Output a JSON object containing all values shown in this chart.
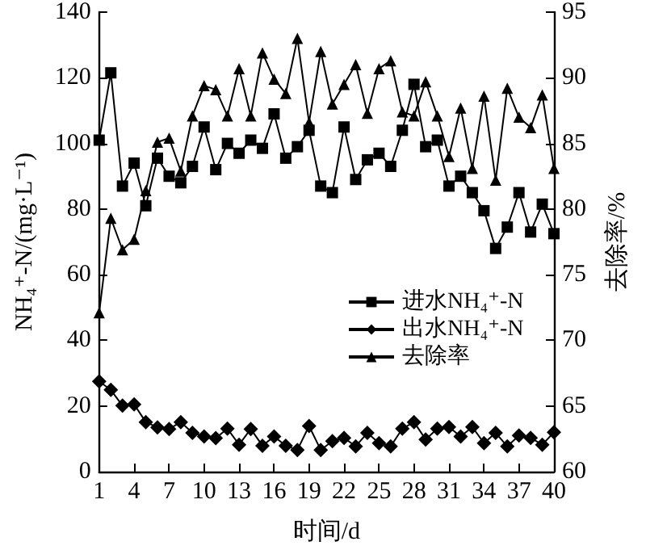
{
  "chart_data": {
    "type": "line",
    "xlabel": "时间/d",
    "ylabel": "NH₄⁺-N/(mg·L⁻¹)",
    "y2label": "去除率/%",
    "x": [
      1,
      2,
      3,
      4,
      5,
      6,
      7,
      8,
      9,
      10,
      11,
      12,
      13,
      14,
      15,
      16,
      17,
      18,
      19,
      20,
      21,
      22,
      23,
      24,
      25,
      26,
      27,
      28,
      29,
      30,
      31,
      32,
      33,
      34,
      35,
      36,
      37,
      38,
      39,
      40
    ],
    "series": [
      {
        "name": "进水NH₄⁺-N",
        "color": "#000000",
        "marker": "square",
        "values": [
          101,
          121.5,
          87,
          94,
          81,
          95.5,
          90,
          88,
          93,
          105,
          92,
          100,
          97,
          101,
          98.5,
          109,
          95.5,
          99,
          104,
          87,
          85,
          105,
          89,
          95,
          97,
          93,
          104,
          118,
          99,
          101,
          87,
          90,
          85,
          79.5,
          68,
          74.5,
          85,
          73,
          81.5,
          72.5
        ]
      },
      {
        "name": "出水NH₄⁺-N",
        "color": "#000000",
        "marker": "diamond",
        "values": [
          27.5,
          24.9,
          20.1,
          20.5,
          15.1,
          13.5,
          13,
          15.1,
          11.8,
          10.7,
          10.2,
          13.1,
          8.2,
          13,
          7.9,
          10.7,
          7.9,
          6.6,
          13.9,
          6.6,
          9.3,
          10.3,
          7.7,
          11.8,
          8.7,
          7.7,
          13.1,
          15.1,
          9.8,
          13.1,
          13.6,
          10.7,
          13.6,
          8.7,
          11.8,
          7.7,
          11,
          10.3,
          8.2,
          12
        ]
      },
      {
        "name": "去除率",
        "color": "#000000",
        "marker": "triangle",
        "axis": "y2",
        "values": [
          72.1,
          79.3,
          76.9,
          77.7,
          81.4,
          85.1,
          85.4,
          82.9,
          87.1,
          89.4,
          89.1,
          87.1,
          90.7,
          87.1,
          91.9,
          89.9,
          88.8,
          93,
          86.6,
          92,
          88,
          89.5,
          91,
          87.3,
          90.7,
          91.3,
          87.4,
          87.1,
          89.7,
          87.1,
          84,
          87.7,
          83.1,
          88.6,
          82.2,
          89.2,
          87,
          86.2,
          88.7,
          83.1
        ]
      }
    ],
    "xlim": [
      1,
      40
    ],
    "xticks": [
      1,
      4,
      7,
      10,
      13,
      16,
      19,
      22,
      25,
      28,
      31,
      34,
      37,
      40
    ],
    "ylim": [
      0,
      140
    ],
    "yticks": [
      0,
      20,
      40,
      60,
      80,
      100,
      120,
      140
    ],
    "y2lim": [
      60,
      95
    ],
    "y2ticks": [
      60,
      65,
      70,
      75,
      80,
      85,
      90,
      95
    ],
    "grid": false,
    "legend": "right",
    "line_style": "solid"
  }
}
